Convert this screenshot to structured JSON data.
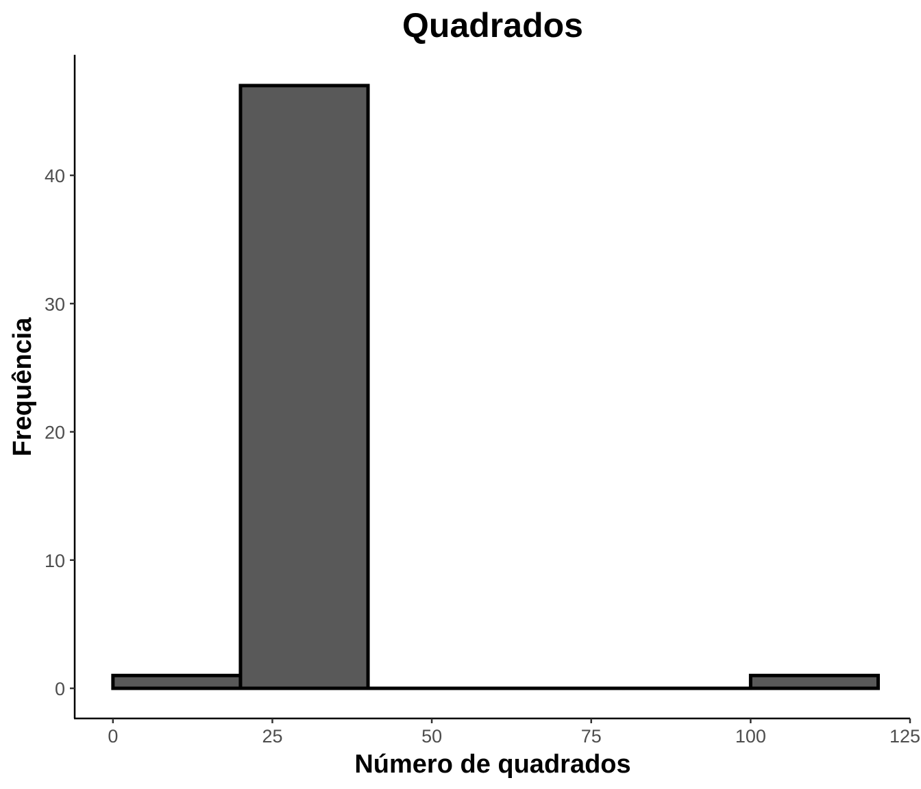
{
  "chart_data": {
    "type": "bar",
    "title": "Quadrados",
    "xlabel": "Número de quadrados",
    "ylabel": "Frequência",
    "bins": [
      {
        "x0": 0,
        "x1": 20,
        "count": 1
      },
      {
        "x0": 20,
        "x1": 40,
        "count": 47
      },
      {
        "x0": 40,
        "x1": 60,
        "count": 0
      },
      {
        "x0": 60,
        "x1": 80,
        "count": 0
      },
      {
        "x0": 80,
        "x1": 100,
        "count": 0
      },
      {
        "x0": 100,
        "x1": 120,
        "count": 1
      }
    ],
    "xticks": [
      0,
      25,
      50,
      75,
      100,
      125
    ],
    "yticks": [
      0,
      10,
      20,
      30,
      40
    ],
    "xlim": [
      -6,
      125
    ],
    "ylim": [
      -2.35,
      49.4
    ],
    "grid": false,
    "colors": {
      "bar_fill": "#595959",
      "bar_outline": "#000000",
      "tick_text": "#4d4d4d"
    }
  }
}
